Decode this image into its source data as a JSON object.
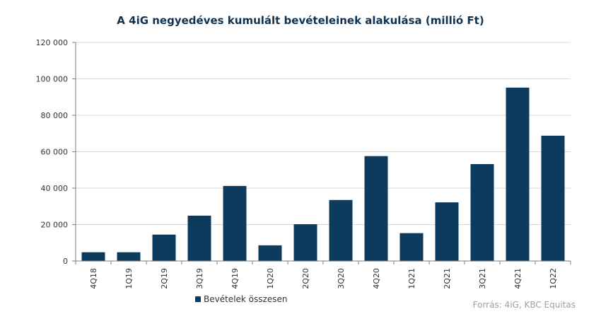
{
  "chart_data": {
    "type": "bar",
    "title": "A 4iG negyedéves kumulált bevételeinek alakulása (millió Ft)",
    "categories": [
      "4Q18",
      "1Q19",
      "2Q19",
      "3Q19",
      "4Q19",
      "1Q20",
      "2Q20",
      "3Q20",
      "4Q20",
      "1Q21",
      "2Q21",
      "3Q21",
      "4Q21",
      "1Q22"
    ],
    "series": [
      {
        "name": "Bevételek összesen",
        "values": [
          4800,
          4800,
          14500,
          24900,
          41200,
          8600,
          20200,
          33500,
          57600,
          15300,
          32200,
          53200,
          95200,
          68800
        ],
        "color": "#0d3b5e"
      }
    ],
    "ylim": [
      0,
      120000
    ],
    "yticks": [
      0,
      20000,
      40000,
      60000,
      80000,
      100000,
      120000
    ],
    "ytick_labels": [
      "0",
      "20 000",
      "40 000",
      "60 000",
      "80 000",
      "100 000",
      "120 000"
    ],
    "grid": true,
    "legend_position": "bottom-left",
    "source": "Forrás: 4iG, KBC Equitas",
    "colors": {
      "bar": "#0d3b5e",
      "grid": "#d9d9d9",
      "axis": "#7f7f7f",
      "title": "#0f3350"
    }
  }
}
